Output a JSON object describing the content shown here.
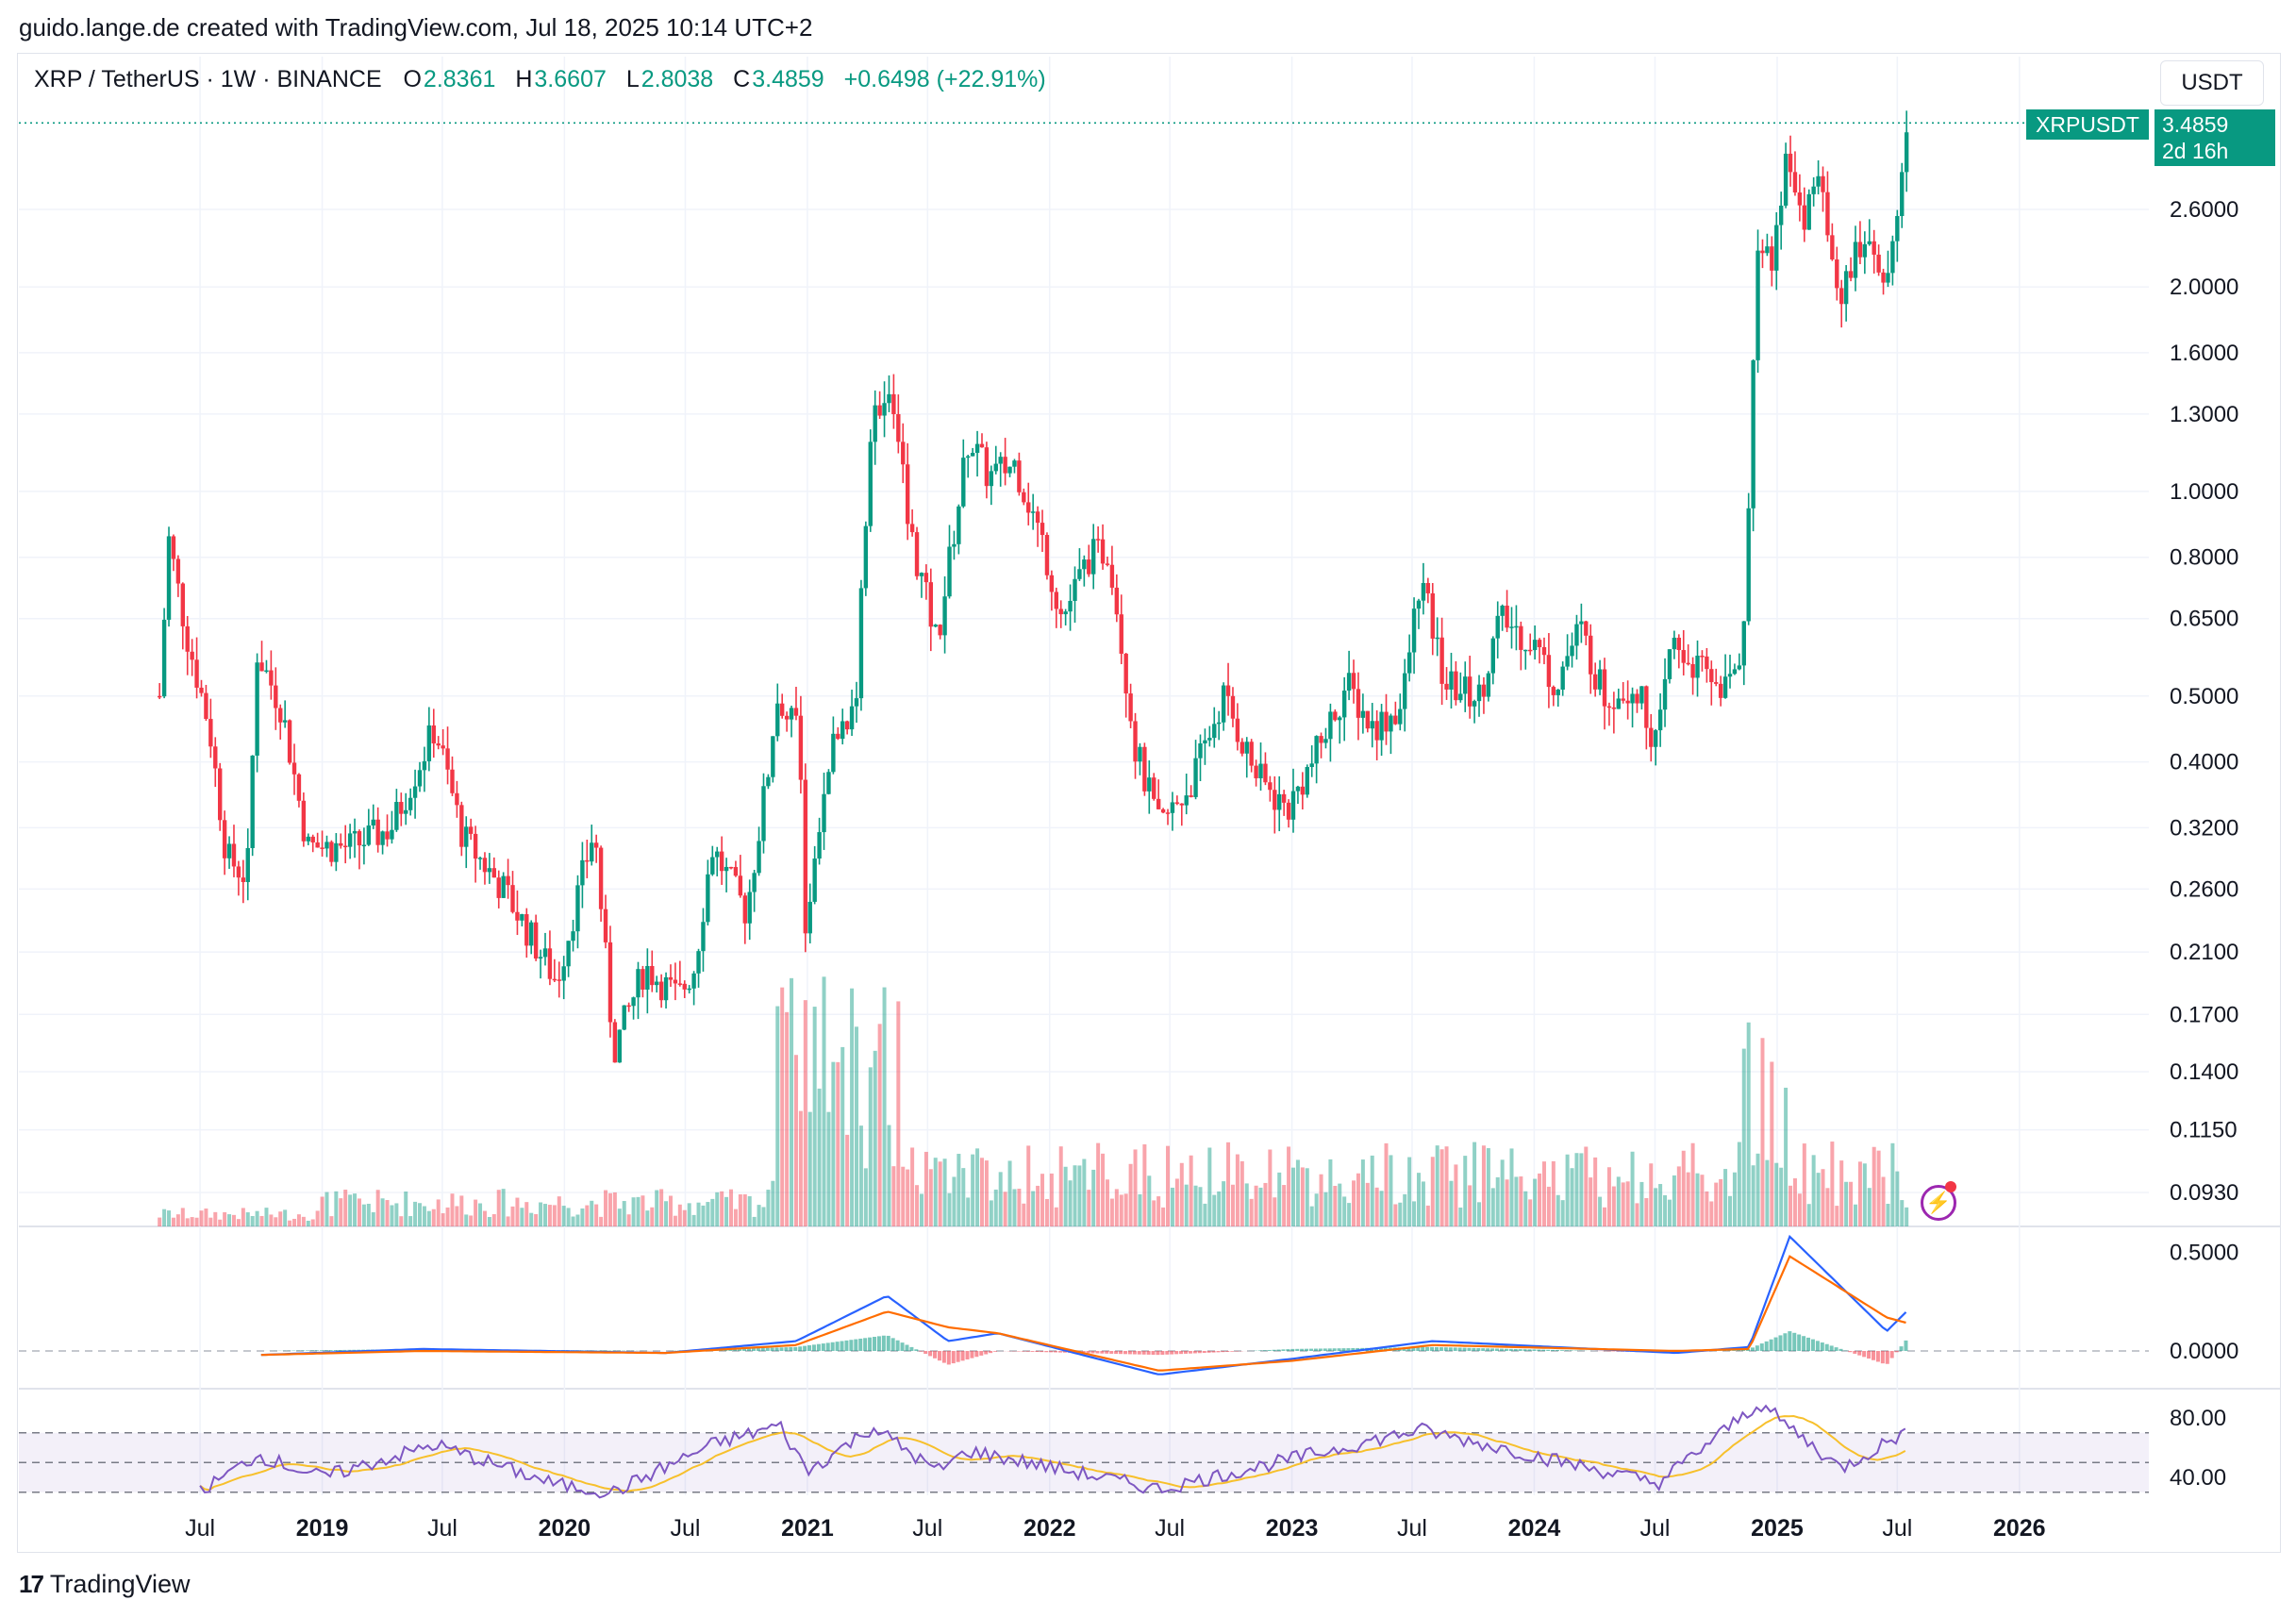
{
  "header": {
    "credit": "guido.lange.de created with TradingView.com, Jul 18, 2025 10:14 UTC+2"
  },
  "legend": {
    "symbol": "XRP / TetherUS · 1W · BINANCE",
    "o_label": "O",
    "o": "2.8361",
    "h_label": "H",
    "h": "3.6607",
    "l_label": "L",
    "l": "2.8038",
    "c_label": "C",
    "c": "3.4859",
    "change": "+0.6498 (+22.91%)"
  },
  "currency_button": "USDT",
  "price_tag": {
    "symbol": "XRPUSDT",
    "price": "3.4859",
    "countdown": "2d 16h"
  },
  "brand": {
    "logo": "17",
    "name": "TradingView"
  },
  "colors": {
    "up": "#089981",
    "down": "#f23645",
    "macd": "#2962ff",
    "signal": "#ff6d00",
    "rsi": "#7e57c2",
    "rsi_ma": "#f7c02c"
  },
  "chart_data": {
    "type": "candlestick",
    "symbol": "XRPUSDT",
    "interval": "1W",
    "scale": "log",
    "price_axis": [
      "2.6000",
      "2.0000",
      "1.6000",
      "1.3000",
      "1.0000",
      "0.8000",
      "0.6500",
      "0.5000",
      "0.4000",
      "0.3200",
      "0.2600",
      "0.2100",
      "0.1700",
      "0.1400",
      "0.1150",
      "0.0930"
    ],
    "macd_axis": [
      "0.5000",
      "0.0000"
    ],
    "rsi_axis": [
      "80.00",
      "40.00"
    ],
    "time_axis": [
      {
        "label": "Jul",
        "date": "2018-07-01",
        "bold": false
      },
      {
        "label": "2019",
        "date": "2019-01-01",
        "bold": true
      },
      {
        "label": "Jul",
        "date": "2019-07-01",
        "bold": false
      },
      {
        "label": "2020",
        "date": "2020-01-01",
        "bold": true
      },
      {
        "label": "Jul",
        "date": "2020-07-01",
        "bold": false
      },
      {
        "label": "2021",
        "date": "2021-01-01",
        "bold": true
      },
      {
        "label": "Jul",
        "date": "2021-07-01",
        "bold": false
      },
      {
        "label": "2022",
        "date": "2022-01-01",
        "bold": true
      },
      {
        "label": "Jul",
        "date": "2022-07-01",
        "bold": false
      },
      {
        "label": "2023",
        "date": "2023-01-01",
        "bold": true
      },
      {
        "label": "Jul",
        "date": "2023-07-01",
        "bold": false
      },
      {
        "label": "2024",
        "date": "2024-01-01",
        "bold": true
      },
      {
        "label": "Jul",
        "date": "2024-07-01",
        "bold": false
      },
      {
        "label": "2025",
        "date": "2025-01-01",
        "bold": true
      },
      {
        "label": "Jul",
        "date": "2025-07-01",
        "bold": false
      },
      {
        "label": "2026",
        "date": "2026-01-01",
        "bold": true
      }
    ],
    "price_path": [
      {
        "date": "2018-05-01",
        "close": 0.5
      },
      {
        "date": "2018-05-15",
        "close": 0.85
      },
      {
        "date": "2018-06-10",
        "close": 0.62
      },
      {
        "date": "2018-07-15",
        "close": 0.45
      },
      {
        "date": "2018-08-10",
        "close": 0.29
      },
      {
        "date": "2018-09-10",
        "close": 0.27
      },
      {
        "date": "2018-09-25",
        "close": 0.58
      },
      {
        "date": "2018-11-01",
        "close": 0.48
      },
      {
        "date": "2018-12-10",
        "close": 0.3
      },
      {
        "date": "2019-02-15",
        "close": 0.3
      },
      {
        "date": "2019-04-15",
        "close": 0.32
      },
      {
        "date": "2019-06-20",
        "close": 0.45
      },
      {
        "date": "2019-08-01",
        "close": 0.31
      },
      {
        "date": "2019-10-01",
        "close": 0.26
      },
      {
        "date": "2019-12-20",
        "close": 0.19
      },
      {
        "date": "2020-02-15",
        "close": 0.32
      },
      {
        "date": "2020-03-15",
        "close": 0.15
      },
      {
        "date": "2020-05-01",
        "close": 0.2
      },
      {
        "date": "2020-06-20",
        "close": 0.18
      },
      {
        "date": "2020-07-15",
        "close": 0.2
      },
      {
        "date": "2020-08-10",
        "close": 0.3
      },
      {
        "date": "2020-10-01",
        "close": 0.24
      },
      {
        "date": "2020-11-20",
        "close": 0.5
      },
      {
        "date": "2020-12-20",
        "close": 0.45
      },
      {
        "date": "2020-12-29",
        "close": 0.22
      },
      {
        "date": "2021-02-01",
        "close": 0.4
      },
      {
        "date": "2021-03-15",
        "close": 0.5
      },
      {
        "date": "2021-04-10",
        "close": 1.4
      },
      {
        "date": "2021-05-15",
        "close": 1.3
      },
      {
        "date": "2021-06-01",
        "close": 0.9
      },
      {
        "date": "2021-07-15",
        "close": 0.6
      },
      {
        "date": "2021-09-01",
        "close": 1.2
      },
      {
        "date": "2021-10-01",
        "close": 1.05
      },
      {
        "date": "2021-11-10",
        "close": 1.1
      },
      {
        "date": "2021-12-20",
        "close": 0.85
      },
      {
        "date": "2022-01-20",
        "close": 0.65
      },
      {
        "date": "2022-03-01",
        "close": 0.8
      },
      {
        "date": "2022-04-01",
        "close": 0.82
      },
      {
        "date": "2022-05-10",
        "close": 0.42
      },
      {
        "date": "2022-06-15",
        "close": 0.32
      },
      {
        "date": "2022-08-01",
        "close": 0.37
      },
      {
        "date": "2022-09-20",
        "close": 0.5
      },
      {
        "date": "2022-11-10",
        "close": 0.38
      },
      {
        "date": "2022-12-25",
        "close": 0.34
      },
      {
        "date": "2023-02-01",
        "close": 0.4
      },
      {
        "date": "2023-03-25",
        "close": 0.52
      },
      {
        "date": "2023-05-01",
        "close": 0.45
      },
      {
        "date": "2023-06-15",
        "close": 0.48
      },
      {
        "date": "2023-07-13",
        "close": 0.75
      },
      {
        "date": "2023-08-20",
        "close": 0.52
      },
      {
        "date": "2023-10-10",
        "close": 0.5
      },
      {
        "date": "2023-11-10",
        "close": 0.65
      },
      {
        "date": "2024-01-01",
        "close": 0.6
      },
      {
        "date": "2024-02-01",
        "close": 0.52
      },
      {
        "date": "2024-03-10",
        "close": 0.63
      },
      {
        "date": "2024-04-15",
        "close": 0.5
      },
      {
        "date": "2024-06-01",
        "close": 0.52
      },
      {
        "date": "2024-07-05",
        "close": 0.42
      },
      {
        "date": "2024-07-25",
        "close": 0.6
      },
      {
        "date": "2024-09-01",
        "close": 0.55
      },
      {
        "date": "2024-10-20",
        "close": 0.51
      },
      {
        "date": "2024-11-10",
        "close": 0.6
      },
      {
        "date": "2024-11-25",
        "close": 1.4
      },
      {
        "date": "2024-12-05",
        "close": 2.4
      },
      {
        "date": "2024-12-25",
        "close": 2.2
      },
      {
        "date": "2025-01-15",
        "close": 3.1
      },
      {
        "date": "2025-02-10",
        "close": 2.5
      },
      {
        "date": "2025-03-01",
        "close": 2.9
      },
      {
        "date": "2025-04-07",
        "close": 1.95
      },
      {
        "date": "2025-05-12",
        "close": 2.4
      },
      {
        "date": "2025-06-20",
        "close": 2.05
      },
      {
        "date": "2025-07-07",
        "close": 2.83
      },
      {
        "date": "2025-07-18",
        "close": 3.4859
      }
    ],
    "macd_path": [
      {
        "date": "2018-10-01",
        "macd": -0.02,
        "signal": -0.02
      },
      {
        "date": "2019-06-01",
        "macd": 0.01,
        "signal": 0.0
      },
      {
        "date": "2020-06-01",
        "macd": -0.01,
        "signal": -0.01
      },
      {
        "date": "2020-12-15",
        "macd": 0.05,
        "signal": 0.03
      },
      {
        "date": "2021-05-01",
        "macd": 0.28,
        "signal": 0.2
      },
      {
        "date": "2021-08-01",
        "macd": 0.05,
        "signal": 0.12
      },
      {
        "date": "2021-10-15",
        "macd": 0.09,
        "signal": 0.09
      },
      {
        "date": "2022-06-15",
        "macd": -0.12,
        "signal": -0.1
      },
      {
        "date": "2023-01-01",
        "macd": -0.04,
        "signal": -0.05
      },
      {
        "date": "2023-08-01",
        "macd": 0.05,
        "signal": 0.03
      },
      {
        "date": "2024-08-01",
        "macd": -0.01,
        "signal": 0.0
      },
      {
        "date": "2024-11-20",
        "macd": 0.02,
        "signal": 0.01
      },
      {
        "date": "2025-01-20",
        "macd": 0.58,
        "signal": 0.48
      },
      {
        "date": "2025-06-15",
        "macd": 0.1,
        "signal": 0.17
      },
      {
        "date": "2025-07-18",
        "macd": 0.21,
        "signal": 0.14
      }
    ],
    "rsi_path": [
      {
        "date": "2018-07-01",
        "rsi": 30
      },
      {
        "date": "2018-09-25",
        "rsi": 55
      },
      {
        "date": "2019-01-01",
        "rsi": 40
      },
      {
        "date": "2019-06-20",
        "rsi": 62
      },
      {
        "date": "2019-12-20",
        "rsi": 35
      },
      {
        "date": "2020-03-15",
        "rsi": 30
      },
      {
        "date": "2020-08-10",
        "rsi": 62
      },
      {
        "date": "2020-11-20",
        "rsi": 75
      },
      {
        "date": "2021-01-01",
        "rsi": 44
      },
      {
        "date": "2021-04-10",
        "rsi": 74
      },
      {
        "date": "2021-07-15",
        "rsi": 44
      },
      {
        "date": "2021-09-01",
        "rsi": 58
      },
      {
        "date": "2022-06-15",
        "rsi": 32
      },
      {
        "date": "2023-07-13",
        "rsi": 72
      },
      {
        "date": "2024-07-05",
        "rsi": 36
      },
      {
        "date": "2024-12-05",
        "rsi": 90
      },
      {
        "date": "2025-04-07",
        "rsi": 46
      },
      {
        "date": "2025-07-18",
        "rsi": 72
      }
    ]
  }
}
